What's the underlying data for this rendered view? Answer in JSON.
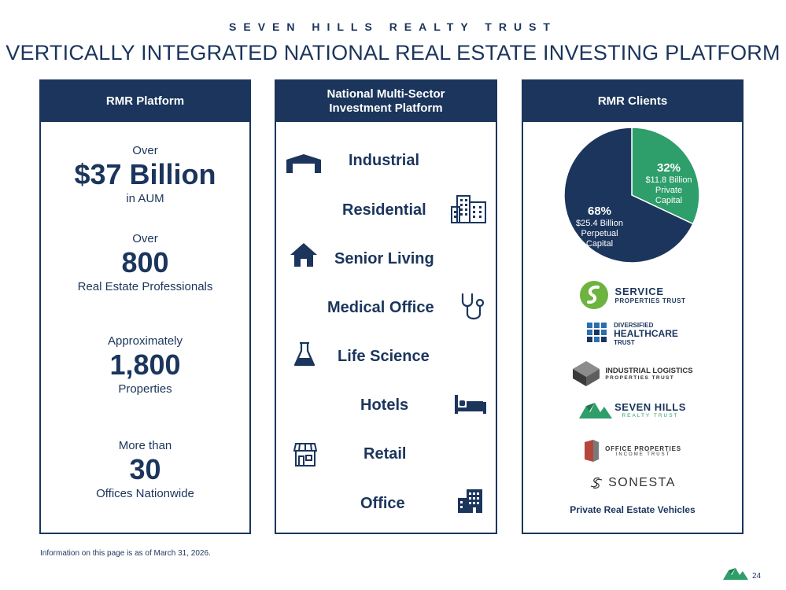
{
  "brand": "SEVEN HILLS REALTY TRUST",
  "title": "VERTICALLY INTEGRATED NATIONAL REAL ESTATE INVESTING PLATFORM",
  "rmr_platform": {
    "header": "RMR Platform",
    "stats": [
      {
        "pre": "Over",
        "value": "$37 Billion",
        "post": "in AUM"
      },
      {
        "pre": "Over",
        "value": "800",
        "post": "Real Estate Professionals"
      },
      {
        "pre": "Approximately",
        "value": "1,800",
        "post": "Properties"
      },
      {
        "pre": "More than",
        "value": "30",
        "post": "Offices Nationwide"
      }
    ]
  },
  "multi_sector": {
    "header_line1": "National Multi-Sector",
    "header_line2": "Investment Platform",
    "sectors": [
      {
        "label": "Industrial",
        "icon": "warehouse-icon"
      },
      {
        "label": "Residential",
        "icon": "apartment-buildings-icon"
      },
      {
        "label": "Senior Living",
        "icon": "house-icon"
      },
      {
        "label": "Medical Office",
        "icon": "stethoscope-icon"
      },
      {
        "label": "Life Science",
        "icon": "flask-icon"
      },
      {
        "label": "Hotels",
        "icon": "bed-icon"
      },
      {
        "label": "Retail",
        "icon": "storefront-icon"
      },
      {
        "label": "Office",
        "icon": "office-building-icon"
      }
    ]
  },
  "rmr_clients": {
    "header": "RMR Clients",
    "chart_data": {
      "type": "pie",
      "slices": [
        {
          "percent": 68,
          "pct_label": "68%",
          "amount": "$25.4 Billion",
          "line2": "Perpetual",
          "line3": "Capital",
          "color": "#1b355c"
        },
        {
          "percent": 32,
          "pct_label": "32%",
          "amount": "$11.8 Billion",
          "line2": "Private",
          "line3": "Capital",
          "color": "#2e9e6a"
        }
      ]
    },
    "logos": {
      "svc_line1": "SERVICE",
      "svc_line2": "PROPERTIES TRUST",
      "dhc_line1": "DIVERSIFIED",
      "dhc_line2": "HEALTHCARE",
      "dhc_line3": "TRUST",
      "ilpt_line1": "INDUSTRIAL LOGISTICS",
      "ilpt_line2": "PROPERTIES TRUST",
      "seven_line1": "SEVEN HILLS",
      "seven_line2": "REALTY TRUST",
      "opi_line1": "OFFICE PROPERTIES",
      "opi_line2": "INCOME TRUST",
      "sonesta": "SONESTA"
    },
    "vehicles": "Private Real Estate Vehicles"
  },
  "footnote": "Information on this page is as of March 31, 2026.",
  "page_number": "24",
  "colors": {
    "navy": "#1b355c",
    "green": "#2e9e6a",
    "lime": "#6cb33f"
  }
}
